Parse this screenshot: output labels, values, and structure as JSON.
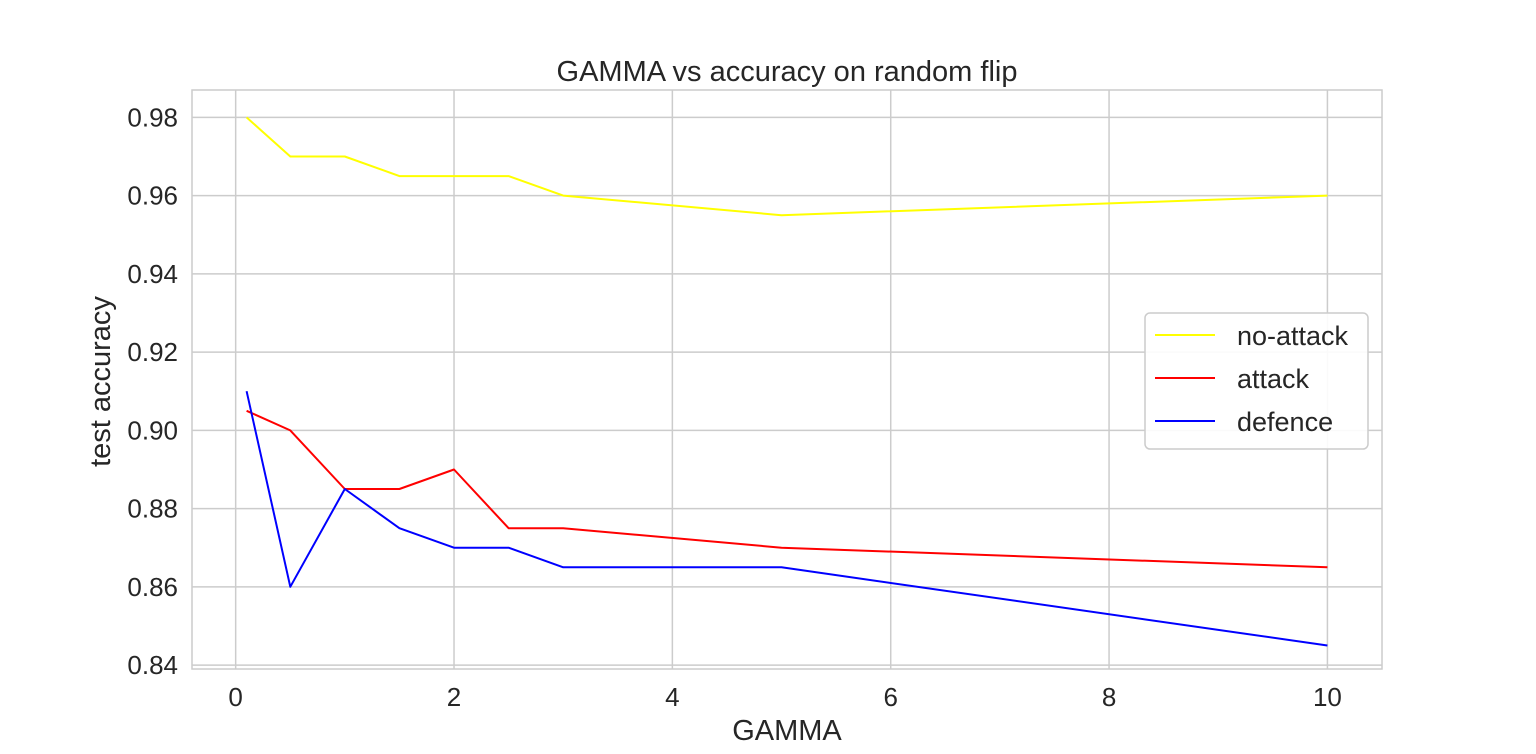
{
  "chart_data": {
    "type": "line",
    "title": "GAMMA vs accuracy on random flip",
    "xlabel": "GAMMA",
    "ylabel": "test accuracy",
    "xlim": [
      -0.4,
      10.5
    ],
    "ylim": [
      0.839,
      0.987
    ],
    "xticks": [
      0,
      2,
      4,
      6,
      8,
      10
    ],
    "yticks": [
      0.84,
      0.86,
      0.88,
      0.9,
      0.92,
      0.94,
      0.96,
      0.98
    ],
    "xtick_labels": [
      "0",
      "2",
      "4",
      "6",
      "8",
      "10"
    ],
    "ytick_labels": [
      "0.84",
      "0.86",
      "0.88",
      "0.90",
      "0.92",
      "0.94",
      "0.96",
      "0.98"
    ],
    "grid": true,
    "legend_position": "center-right",
    "x": [
      0.1,
      0.5,
      1,
      1.5,
      2,
      2.5,
      3,
      5,
      10
    ],
    "series": [
      {
        "name": "no-attack",
        "color": "#ffff00",
        "values": [
          0.98,
          0.97,
          0.97,
          0.965,
          0.965,
          0.965,
          0.96,
          0.955,
          0.96
        ]
      },
      {
        "name": "attack",
        "color": "#ff0000",
        "values": [
          0.905,
          0.9,
          0.885,
          0.885,
          0.89,
          0.875,
          0.875,
          0.87,
          0.865
        ]
      },
      {
        "name": "defence",
        "color": "#0000ff",
        "values": [
          0.91,
          0.86,
          0.885,
          0.875,
          0.87,
          0.87,
          0.865,
          0.865,
          0.845
        ]
      }
    ]
  }
}
